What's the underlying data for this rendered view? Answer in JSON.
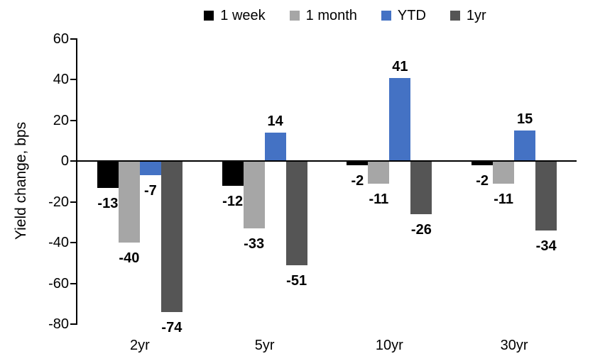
{
  "chart_data": {
    "type": "bar",
    "title": "",
    "xlabel": "",
    "ylabel": "Yield change, bps",
    "categories": [
      "2yr",
      "5yr",
      "10yr",
      "30yr"
    ],
    "series": [
      {
        "name": "1 week",
        "color": "#000000",
        "values": [
          -13,
          -12,
          -2,
          -2
        ]
      },
      {
        "name": "1 month",
        "color": "#a6a6a6",
        "values": [
          -40,
          -33,
          -11,
          -11
        ]
      },
      {
        "name": "YTD",
        "color": "#4472c4",
        "values": [
          -7,
          14,
          41,
          15
        ]
      },
      {
        "name": "1yr",
        "color": "#555555",
        "values": [
          -74,
          -51,
          -26,
          -34
        ]
      }
    ],
    "ylim": [
      -80,
      60
    ],
    "yticks": [
      60,
      40,
      20,
      0,
      -20,
      -40,
      -60,
      -80
    ],
    "grid": false,
    "legend_position": "top",
    "bar_labels_shown": true,
    "axis_color": "#000000"
  }
}
